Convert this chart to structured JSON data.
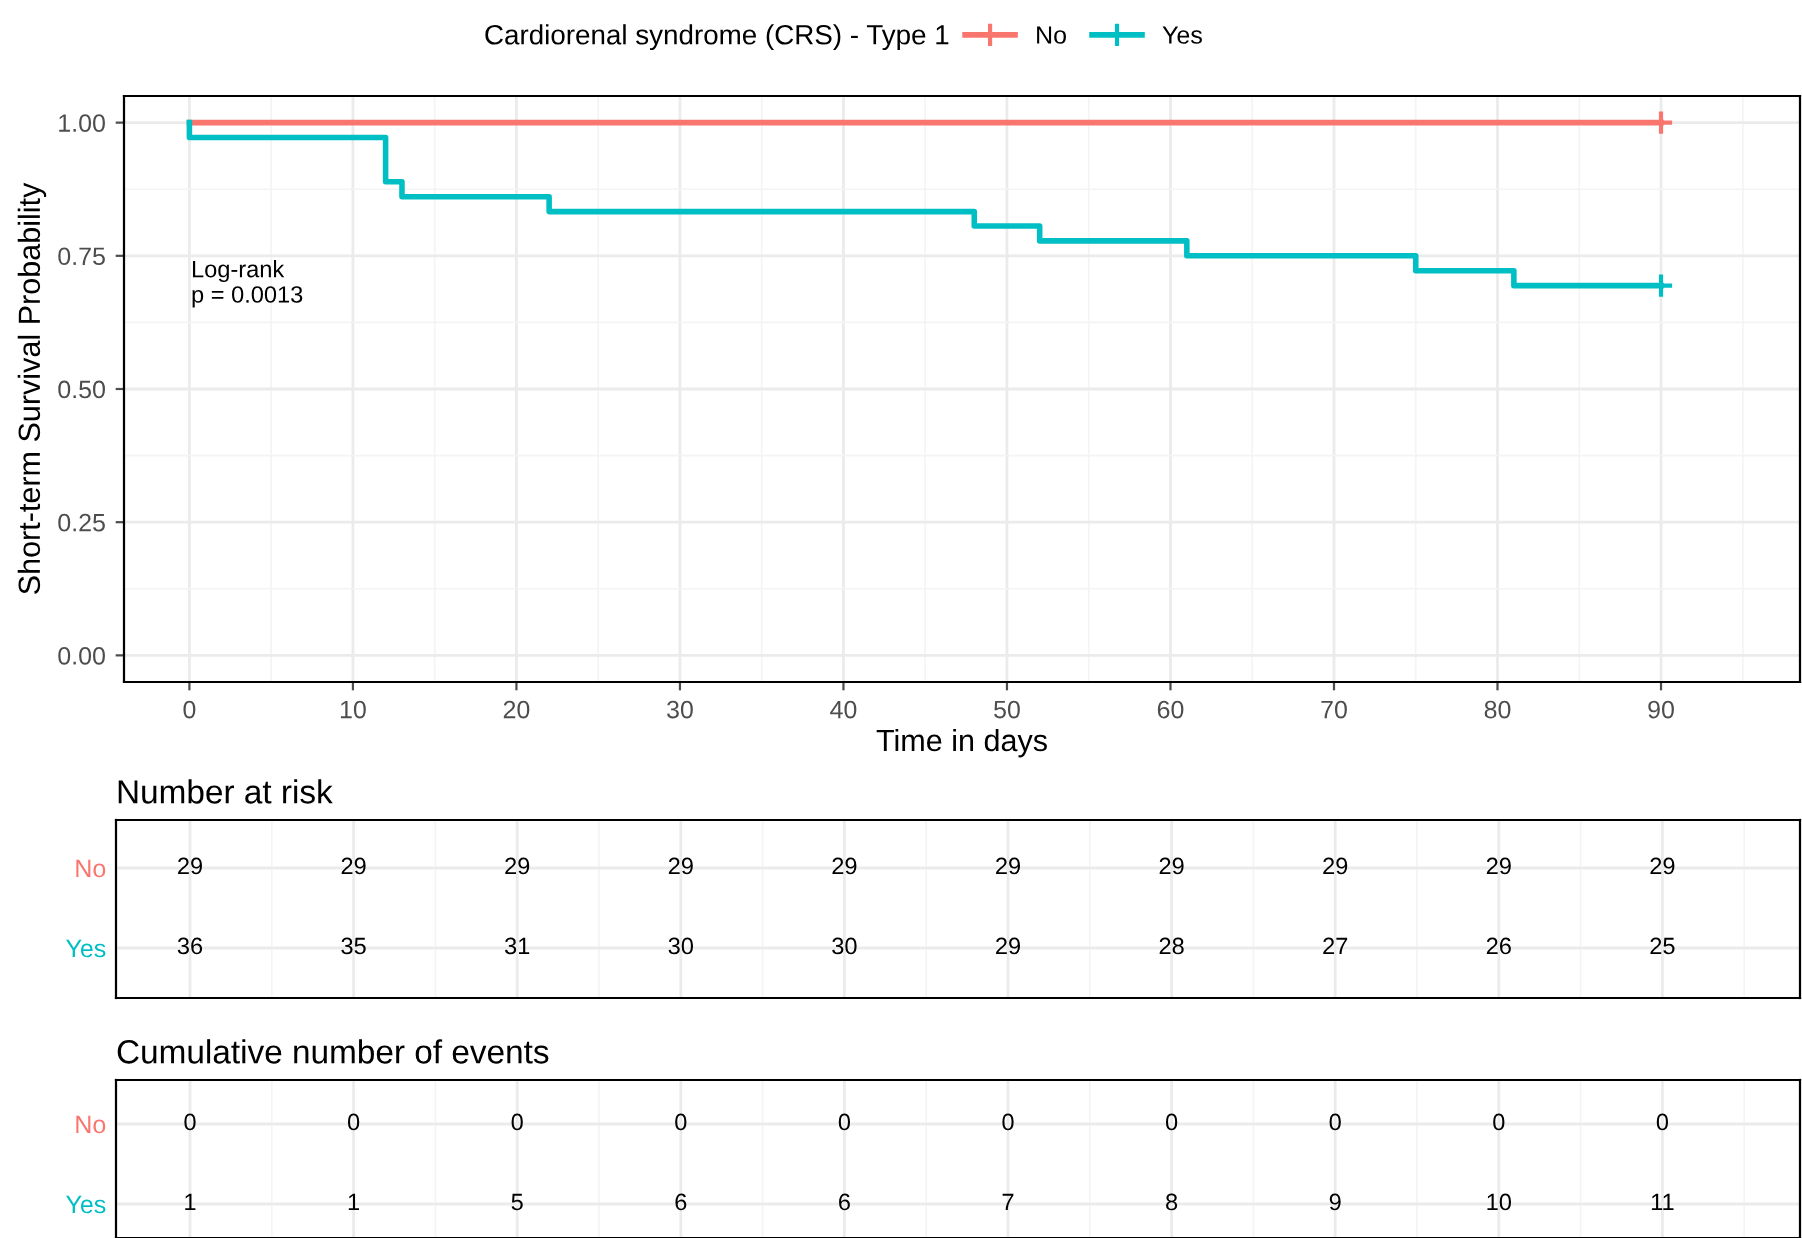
{
  "chart_data": [
    {
      "type": "step",
      "xlabel": "Time in days",
      "ylabel": "Short-term Survival Probability",
      "legend_title": "Cardiorenal syndrome (CRS) - Type 1",
      "legend": "top",
      "grid": true,
      "xlim": [
        -4,
        98.5
      ],
      "xticks": [
        0,
        10,
        20,
        30,
        40,
        50,
        60,
        70,
        80,
        90
      ],
      "ylim": [
        -0.05,
        1.05
      ],
      "yticks": [
        {
          "value": 0,
          "label": "0.00"
        },
        {
          "value": 0.25,
          "label": "0.25"
        },
        {
          "value": 0.5,
          "label": "0.50"
        },
        {
          "value": 0.75,
          "label": "0.75"
        },
        {
          "value": 1,
          "label": "1.00"
        }
      ],
      "annotations": [
        "Log-rank\np = 0.0013"
      ],
      "series": [
        {
          "name": "No",
          "color": "#f8766d",
          "x": [
            0,
            90
          ],
          "values": [
            1.0,
            1.0
          ]
        },
        {
          "name": "Yes",
          "color": "#00bfc4",
          "x": [
            0,
            0,
            12,
            13,
            22,
            48,
            52,
            61,
            75,
            81,
            90
          ],
          "values": [
            1.0,
            0.972,
            0.889,
            0.861,
            0.833,
            0.806,
            0.778,
            0.75,
            0.722,
            0.694,
            0.694
          ]
        },
        {
          "type": "scatter",
          "marker": "cross",
          "color": "#f8766d",
          "x": [
            90
          ],
          "values": [
            1.0
          ]
        },
        {
          "type": "scatter",
          "marker": "cross",
          "color": "#00bfc4",
          "x": [
            90
          ],
          "values": [
            0.694
          ]
        }
      ]
    },
    {
      "type": "heatmap",
      "title": "Number at risk",
      "data_labels": true,
      "grid": true,
      "categories": [
        null,
        null,
        null,
        null,
        null,
        null,
        null,
        null,
        null,
        null
      ],
      "y_categories": [
        "No",
        "Yes"
      ],
      "colors": [
        "#f8766d",
        "#00bfc4"
      ],
      "cells": [
        [
          29,
          29,
          29,
          29,
          29,
          29,
          29,
          29,
          29,
          29
        ],
        [
          36,
          35,
          31,
          30,
          30,
          29,
          28,
          27,
          26,
          25
        ]
      ]
    },
    {
      "type": "heatmap",
      "title": "Cumulative number of events",
      "data_labels": true,
      "grid": true,
      "categories": [
        null,
        null,
        null,
        null,
        null,
        null,
        null,
        null,
        null,
        null
      ],
      "y_categories": [
        "No",
        "Yes"
      ],
      "colors": [
        "#f8766d",
        "#00bfc4"
      ],
      "cells": [
        [
          0,
          0,
          0,
          0,
          0,
          0,
          0,
          0,
          0,
          0
        ],
        [
          1,
          1,
          5,
          6,
          6,
          7,
          8,
          9,
          10,
          11
        ]
      ]
    }
  ]
}
